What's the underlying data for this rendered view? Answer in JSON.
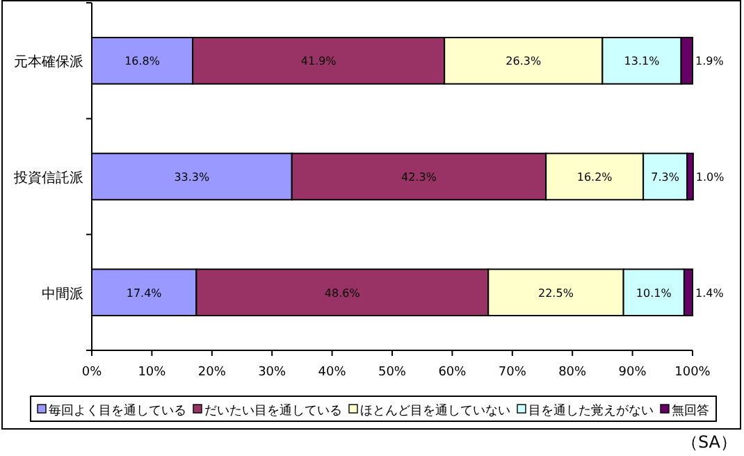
{
  "chart_data": {
    "type": "bar",
    "orientation": "horizontal",
    "stacked": true,
    "categories": [
      "元本確保派",
      "投資信託派",
      "中間派"
    ],
    "series": [
      {
        "name": "毎回よく目を通している",
        "color": "#9999ff",
        "values": [
          16.8,
          33.3,
          17.4
        ],
        "value_labels": [
          "16.8%",
          "33.3%",
          "17.4%"
        ]
      },
      {
        "name": "だいたい目を通している",
        "color": "#993366",
        "values": [
          41.9,
          42.3,
          48.6
        ],
        "value_labels": [
          "41.9%",
          "42.3%",
          "48.6%"
        ]
      },
      {
        "name": "ほとんど目を通していない",
        "color": "#ffffcc",
        "values": [
          26.3,
          16.2,
          22.5
        ],
        "value_labels": [
          "26.3%",
          "16.2%",
          "22.5%"
        ]
      },
      {
        "name": "目を通した覚えがない",
        "color": "#ccffff",
        "values": [
          13.1,
          7.3,
          10.1
        ],
        "value_labels": [
          "13.1%",
          "7.3%",
          "10.1%"
        ]
      },
      {
        "name": "無回答",
        "color": "#660066",
        "values": [
          1.9,
          1.0,
          1.4
        ],
        "value_labels": [
          "1.9%",
          "1.0%",
          "1.4%"
        ]
      }
    ],
    "xlim": [
      0,
      100
    ],
    "xticks": [
      {
        "value": 0,
        "label": "0%"
      },
      {
        "value": 10,
        "label": "10%"
      },
      {
        "value": 20,
        "label": "20%"
      },
      {
        "value": 30,
        "label": "30%"
      },
      {
        "value": 40,
        "label": "40%"
      },
      {
        "value": 50,
        "label": "50%"
      },
      {
        "value": 60,
        "label": "60%"
      },
      {
        "value": 70,
        "label": "70%"
      },
      {
        "value": 80,
        "label": "80%"
      },
      {
        "value": 90,
        "label": "90%"
      },
      {
        "value": 100,
        "label": "100%"
      }
    ],
    "grid": false,
    "legend": "bottom",
    "annotations": [
      "（SA）"
    ]
  }
}
